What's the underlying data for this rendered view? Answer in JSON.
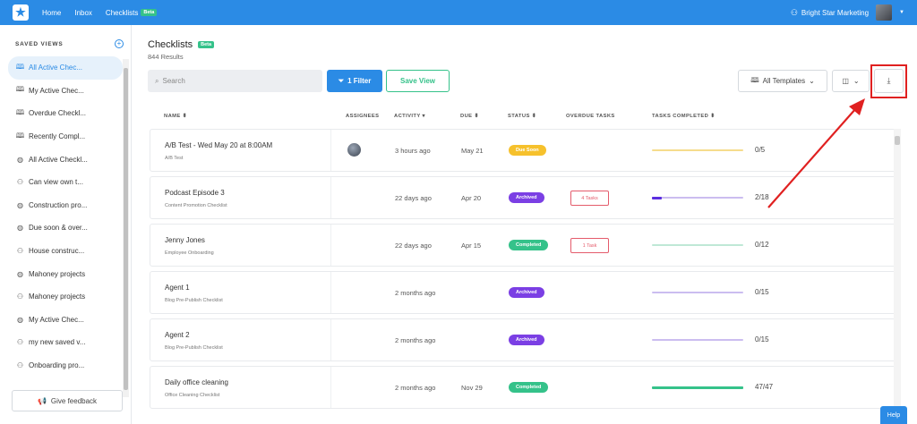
{
  "topbar": {
    "nav": [
      "Home",
      "Inbox",
      "Checklists"
    ],
    "beta": "Beta",
    "org_name": "Bright Star Marketing"
  },
  "sidebar": {
    "title": "SAVED VIEWS",
    "items": [
      {
        "label": "All Active Chec...",
        "icon": "book-icon",
        "active": true
      },
      {
        "label": "My Active Chec...",
        "icon": "book-icon"
      },
      {
        "label": "Overdue Checkl...",
        "icon": "book-icon"
      },
      {
        "label": "Recently Compl...",
        "icon": "book-icon"
      },
      {
        "label": "All Active Checkl...",
        "icon": "globe-icon"
      },
      {
        "label": "Can view own t...",
        "icon": "users-icon"
      },
      {
        "label": "Construction pro...",
        "icon": "globe-icon"
      },
      {
        "label": "Due soon & over...",
        "icon": "globe-icon"
      },
      {
        "label": "House construc...",
        "icon": "users-icon"
      },
      {
        "label": "Mahoney projects",
        "icon": "globe-icon"
      },
      {
        "label": "Mahoney projects",
        "icon": "users-icon"
      },
      {
        "label": "My Active Chec...",
        "icon": "globe-icon"
      },
      {
        "label": "my new saved v...",
        "icon": "users-icon"
      },
      {
        "label": "Onboarding pro...",
        "icon": "users-icon"
      }
    ],
    "feedback": "Give feedback"
  },
  "main": {
    "title": "Checklists",
    "beta": "Beta",
    "results": "844 Results",
    "search_placeholder": "Search",
    "filter_label": "1 Filter",
    "save_view_label": "Save View",
    "templates_label": "All Templates",
    "help_label": "Help"
  },
  "table": {
    "headers": {
      "name": "NAME",
      "assignees": "ASSIGNEES",
      "activity": "ACTIVITY",
      "due": "DUE",
      "status": "STATUS",
      "overdue": "OVERDUE TASKS",
      "completed": "TASKS COMPLETED"
    },
    "rows": [
      {
        "name": "A/B Test - Wed May 20 at 8:00AM",
        "template": "A/B Test",
        "has_assignee": true,
        "activity": "3 hours ago",
        "due": "May 21",
        "status": "Due Soon",
        "status_color": "#f6c12c",
        "overdue": "",
        "completed": "0/5",
        "progress": 0.0,
        "bar_color": "#f6dc8c",
        "fill_color": "#f6c12c"
      },
      {
        "name": "Podcast Episode 3",
        "template": "Content Promotion Checklist",
        "has_assignee": false,
        "activity": "22 days ago",
        "due": "Apr 20",
        "status": "Archived",
        "status_color": "#7b3fe4",
        "overdue": "4 Tasks",
        "completed": "2/18",
        "progress": 0.111,
        "bar_color": "#cbbdf0",
        "fill_color": "#5b2ee0"
      },
      {
        "name": "Jenny Jones",
        "template": "Employee Onboarding",
        "has_assignee": false,
        "activity": "22 days ago",
        "due": "Apr 15",
        "status": "Completed",
        "status_color": "#35c28a",
        "overdue": "1 Task",
        "completed": "0/12",
        "progress": 0.0,
        "bar_color": "#bfe8d6",
        "fill_color": "#35c28a"
      },
      {
        "name": "Agent 1",
        "template": "Blog Pre-Publish Checklist",
        "has_assignee": false,
        "activity": "2 months ago",
        "due": "",
        "status": "Archived",
        "status_color": "#7b3fe4",
        "overdue": "",
        "completed": "0/15",
        "progress": 0.0,
        "bar_color": "#cbbdf0",
        "fill_color": "#5b2ee0"
      },
      {
        "name": "Agent 2",
        "template": "Blog Pre-Publish Checklist",
        "has_assignee": false,
        "activity": "2 months ago",
        "due": "",
        "status": "Archived",
        "status_color": "#7b3fe4",
        "overdue": "",
        "completed": "0/15",
        "progress": 0.0,
        "bar_color": "#cbbdf0",
        "fill_color": "#5b2ee0"
      },
      {
        "name": "Daily office cleaning",
        "template": "Office Cleaning Checklist",
        "has_assignee": false,
        "activity": "2 months ago",
        "due": "Nov 29",
        "status": "Completed",
        "status_color": "#35c28a",
        "overdue": "",
        "completed": "47/47",
        "progress": 1.0,
        "bar_color": "#bfe8d6",
        "fill_color": "#35c28a"
      }
    ]
  }
}
